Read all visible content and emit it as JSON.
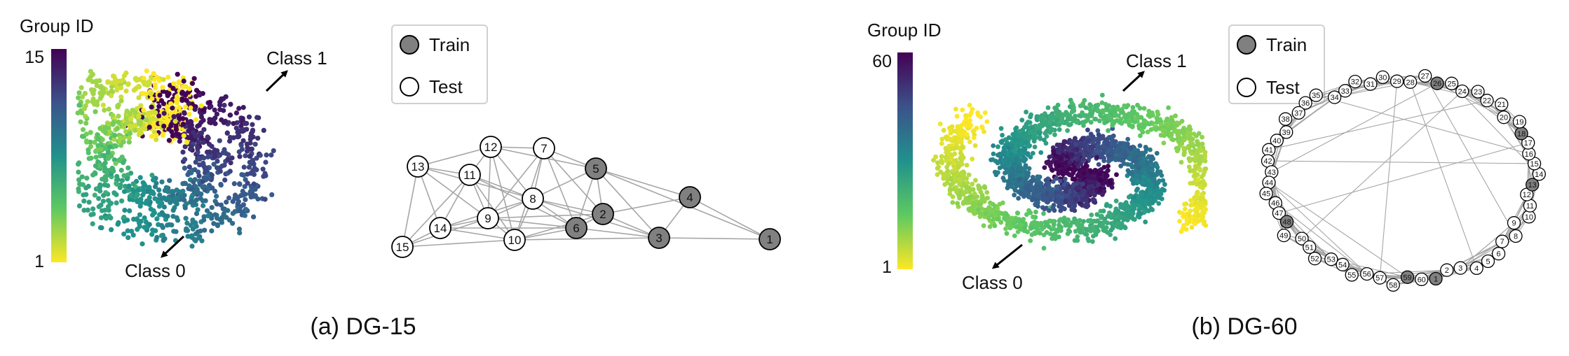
{
  "legend": {
    "train_label": "Train",
    "test_label": "Test"
  },
  "colors": {
    "train_fill": "#808080",
    "test_fill": "#ffffff",
    "edge": "#a6a6a6",
    "viridis": [
      "#fde725",
      "#5ec962",
      "#21918c",
      "#3b528b",
      "#440154"
    ]
  },
  "panels": [
    {
      "caption": "(a) DG-15",
      "colorbar": {
        "title": "Group ID",
        "max_label": "15",
        "min_label": "1"
      },
      "class_labels": {
        "class1": "Class 1",
        "class0": "Class 0"
      },
      "graph": {
        "nodes": [
          {
            "id": "1",
            "split": "train"
          },
          {
            "id": "2",
            "split": "train"
          },
          {
            "id": "3",
            "split": "train"
          },
          {
            "id": "4",
            "split": "train"
          },
          {
            "id": "5",
            "split": "train"
          },
          {
            "id": "6",
            "split": "train"
          },
          {
            "id": "7",
            "split": "test"
          },
          {
            "id": "8",
            "split": "test"
          },
          {
            "id": "9",
            "split": "test"
          },
          {
            "id": "10",
            "split": "test"
          },
          {
            "id": "11",
            "split": "test"
          },
          {
            "id": "12",
            "split": "test"
          },
          {
            "id": "13",
            "split": "test"
          },
          {
            "id": "14",
            "split": "test"
          },
          {
            "id": "15",
            "split": "test"
          }
        ],
        "edges": [
          [
            "13",
            "12"
          ],
          [
            "13",
            "11"
          ],
          [
            "13",
            "14"
          ],
          [
            "13",
            "9"
          ],
          [
            "13",
            "15"
          ],
          [
            "13",
            "8"
          ],
          [
            "12",
            "7"
          ],
          [
            "12",
            "11"
          ],
          [
            "12",
            "8"
          ],
          [
            "12",
            "9"
          ],
          [
            "12",
            "5"
          ],
          [
            "12",
            "10"
          ],
          [
            "7",
            "8"
          ],
          [
            "7",
            "5"
          ],
          [
            "7",
            "9"
          ],
          [
            "7",
            "6"
          ],
          [
            "7",
            "2"
          ],
          [
            "11",
            "9"
          ],
          [
            "11",
            "8"
          ],
          [
            "11",
            "14"
          ],
          [
            "11",
            "15"
          ],
          [
            "11",
            "10"
          ],
          [
            "11",
            "6"
          ],
          [
            "8",
            "9"
          ],
          [
            "8",
            "10"
          ],
          [
            "8",
            "6"
          ],
          [
            "8",
            "2"
          ],
          [
            "8",
            "5"
          ],
          [
            "8",
            "3"
          ],
          [
            "8",
            "14"
          ],
          [
            "9",
            "10"
          ],
          [
            "9",
            "14"
          ],
          [
            "9",
            "15"
          ],
          [
            "9",
            "2"
          ],
          [
            "9",
            "6"
          ],
          [
            "10",
            "2"
          ],
          [
            "10",
            "6"
          ],
          [
            "10",
            "3"
          ],
          [
            "10",
            "14"
          ],
          [
            "10",
            "15"
          ],
          [
            "14",
            "15"
          ],
          [
            "14",
            "6"
          ],
          [
            "5",
            "2"
          ],
          [
            "5",
            "6"
          ],
          [
            "5",
            "4"
          ],
          [
            "5",
            "3"
          ],
          [
            "2",
            "6"
          ],
          [
            "2",
            "4"
          ],
          [
            "2",
            "3"
          ],
          [
            "6",
            "3"
          ],
          [
            "4",
            "3"
          ],
          [
            "4",
            "1"
          ],
          [
            "3",
            "1"
          ],
          [
            "5",
            "1"
          ],
          [
            "7",
            "10"
          ]
        ]
      }
    },
    {
      "caption": "(b) DG-60",
      "colorbar": {
        "title": "Group ID",
        "max_label": "60",
        "min_label": "1"
      },
      "class_labels": {
        "class1": "Class 1",
        "class0": "Class 0"
      },
      "graph": {
        "train_ids": [
          "1",
          "13",
          "18",
          "26",
          "48",
          "59"
        ],
        "node_count": 60
      }
    }
  ]
}
